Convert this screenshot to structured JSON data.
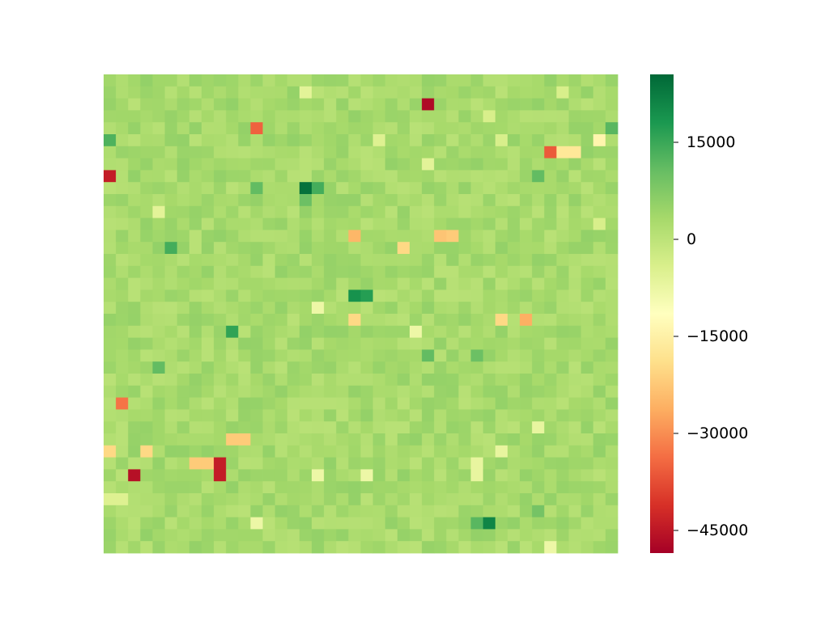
{
  "chart_data": {
    "type": "heatmap",
    "title": "",
    "xlabel": "",
    "ylabel": "",
    "n_rows": 40,
    "n_cols": 42,
    "colormap": "RdYlGn",
    "vmin": -48500,
    "vmax": 25500,
    "background_value": 3000,
    "colorbar": {
      "ticks": [
        15000,
        0,
        -15000,
        -30000,
        -45000
      ],
      "tick_labels": [
        "15000",
        "0",
        "−15000",
        "−30000",
        "−45000"
      ]
    },
    "grid": false,
    "legend": "colorbar-right",
    "outliers": [
      {
        "row": 1,
        "col": 16,
        "value": -6000
      },
      {
        "row": 1,
        "col": 37,
        "value": -4000
      },
      {
        "row": 2,
        "col": 26,
        "value": -47000
      },
      {
        "row": 3,
        "col": 31,
        "value": -4000
      },
      {
        "row": 4,
        "col": 12,
        "value": -35000
      },
      {
        "row": 4,
        "col": 41,
        "value": 12000
      },
      {
        "row": 5,
        "col": 0,
        "value": 13000
      },
      {
        "row": 5,
        "col": 22,
        "value": -5000
      },
      {
        "row": 5,
        "col": 32,
        "value": -4000
      },
      {
        "row": 5,
        "col": 40,
        "value": -14000
      },
      {
        "row": 6,
        "col": 36,
        "value": -36000
      },
      {
        "row": 6,
        "col": 37,
        "value": -17000
      },
      {
        "row": 6,
        "col": 38,
        "value": -17000
      },
      {
        "row": 7,
        "col": 26,
        "value": -6000
      },
      {
        "row": 8,
        "col": 0,
        "value": -44000
      },
      {
        "row": 8,
        "col": 35,
        "value": 11000
      },
      {
        "row": 9,
        "col": 16,
        "value": 24000
      },
      {
        "row": 9,
        "col": 17,
        "value": 14000
      },
      {
        "row": 9,
        "col": 12,
        "value": 11000
      },
      {
        "row": 10,
        "col": 16,
        "value": 10000
      },
      {
        "row": 11,
        "col": 4,
        "value": -6000
      },
      {
        "row": 12,
        "col": 40,
        "value": -4000
      },
      {
        "row": 13,
        "col": 20,
        "value": -25000
      },
      {
        "row": 13,
        "col": 27,
        "value": -23000
      },
      {
        "row": 13,
        "col": 28,
        "value": -22000
      },
      {
        "row": 14,
        "col": 5,
        "value": 14000
      },
      {
        "row": 14,
        "col": 24,
        "value": -20000
      },
      {
        "row": 18,
        "col": 20,
        "value": 19000
      },
      {
        "row": 18,
        "col": 21,
        "value": 17000
      },
      {
        "row": 19,
        "col": 17,
        "value": -8000
      },
      {
        "row": 20,
        "col": 20,
        "value": -20000
      },
      {
        "row": 20,
        "col": 32,
        "value": -20000
      },
      {
        "row": 20,
        "col": 34,
        "value": -26000
      },
      {
        "row": 21,
        "col": 10,
        "value": 16000
      },
      {
        "row": 21,
        "col": 25,
        "value": -8000
      },
      {
        "row": 23,
        "col": 26,
        "value": 11000
      },
      {
        "row": 23,
        "col": 30,
        "value": 10000
      },
      {
        "row": 24,
        "col": 4,
        "value": 11000
      },
      {
        "row": 27,
        "col": 1,
        "value": -33000
      },
      {
        "row": 29,
        "col": 35,
        "value": -7000
      },
      {
        "row": 30,
        "col": 10,
        "value": -22000
      },
      {
        "row": 30,
        "col": 11,
        "value": -22000
      },
      {
        "row": 31,
        "col": 0,
        "value": -20000
      },
      {
        "row": 31,
        "col": 3,
        "value": -20000
      },
      {
        "row": 31,
        "col": 32,
        "value": -7000
      },
      {
        "row": 32,
        "col": 7,
        "value": -22000
      },
      {
        "row": 32,
        "col": 8,
        "value": -22000
      },
      {
        "row": 32,
        "col": 9,
        "value": -44000
      },
      {
        "row": 32,
        "col": 30,
        "value": -7000
      },
      {
        "row": 33,
        "col": 2,
        "value": -46000
      },
      {
        "row": 33,
        "col": 9,
        "value": -44000
      },
      {
        "row": 33,
        "col": 17,
        "value": -8000
      },
      {
        "row": 33,
        "col": 21,
        "value": -8000
      },
      {
        "row": 33,
        "col": 30,
        "value": -7000
      },
      {
        "row": 35,
        "col": 0,
        "value": -5000
      },
      {
        "row": 35,
        "col": 1,
        "value": -5000
      },
      {
        "row": 36,
        "col": 35,
        "value": 9000
      },
      {
        "row": 37,
        "col": 12,
        "value": -8000
      },
      {
        "row": 37,
        "col": 30,
        "value": 12000
      },
      {
        "row": 37,
        "col": 31,
        "value": 21000
      },
      {
        "row": 39,
        "col": 36,
        "value": -8000
      }
    ]
  }
}
